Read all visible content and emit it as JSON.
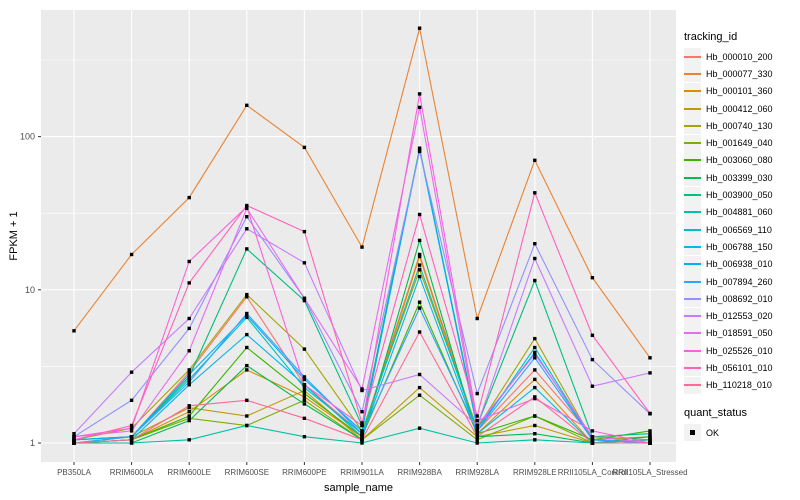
{
  "chart_data": {
    "type": "line",
    "title": "",
    "xlabel": "sample_name",
    "ylabel": "FPKM + 1",
    "y_scale": "log10",
    "y_ticks": [
      1,
      10,
      100
    ],
    "y_tick_labels": [
      "1",
      "10",
      "100"
    ],
    "y_minor_ticks": [
      3.162,
      31.62,
      316.2
    ],
    "ylim": [
      0.93,
      560
    ],
    "grid": true,
    "legend_position": "right",
    "point_shape": "filled-square",
    "point_color": "#000000",
    "x_categories": [
      "PB350LA",
      "RRIM600LA",
      "RRIM600LE",
      "RRIM600SE",
      "RRIM600PE",
      "RRIM901LA",
      "RRIM928BA",
      "RRIM928LA",
      "RRIM928LE",
      "RRII105LA_Control",
      "RRII105LA_Stressed"
    ],
    "series": [
      {
        "name": "Hb_000010_200",
        "color": "#F8766D",
        "values": [
          1.05,
          1.1,
          2.9,
          9.0,
          2.4,
          1.15,
          17,
          1.2,
          3.0,
          1.1,
          1.05
        ]
      },
      {
        "name": "Hb_000077_330",
        "color": "#EA8331",
        "values": [
          5.4,
          17,
          40,
          160,
          85,
          19,
          510,
          6.5,
          70,
          12,
          3.6
        ]
      },
      {
        "name": "Hb_000101_360",
        "color": "#D89000",
        "values": [
          1.0,
          1.05,
          1.6,
          3.0,
          2.0,
          1.1,
          16.5,
          1.15,
          2.6,
          1.0,
          1.0
        ]
      },
      {
        "name": "Hb_000412_060",
        "color": "#C09B00",
        "values": [
          1.0,
          1.1,
          1.7,
          1.5,
          2.2,
          1.05,
          2.3,
          1.1,
          1.3,
          1.0,
          1.0
        ]
      },
      {
        "name": "Hb_000740_130",
        "color": "#A3A500",
        "values": [
          1.05,
          1.25,
          3.0,
          9.3,
          4.1,
          1.2,
          13.5,
          1.25,
          4.8,
          1.05,
          1.1
        ]
      },
      {
        "name": "Hb_001649_040",
        "color": "#7CAE00",
        "values": [
          1.0,
          1.05,
          1.45,
          1.3,
          1.9,
          1.05,
          2.05,
          1.05,
          1.5,
          1.0,
          1.05
        ]
      },
      {
        "name": "Hb_003060_080",
        "color": "#39B600",
        "values": [
          1.0,
          1.05,
          1.5,
          4.2,
          2.1,
          1.1,
          8.3,
          1.15,
          1.5,
          1.05,
          1.2
        ]
      },
      {
        "name": "Hb_003399_030",
        "color": "#00BB4E",
        "values": [
          1.0,
          1.0,
          1.4,
          3.2,
          1.8,
          1.05,
          21,
          1.1,
          1.15,
          1.0,
          1.1
        ]
      },
      {
        "name": "Hb_003900_050",
        "color": "#00BF7D",
        "values": [
          1.05,
          1.1,
          2.7,
          18.5,
          8.5,
          1.3,
          84,
          1.3,
          11.5,
          1.1,
          1.15
        ]
      },
      {
        "name": "Hb_004881_060",
        "color": "#00C1A3",
        "values": [
          1.0,
          1.0,
          1.05,
          1.3,
          1.1,
          1.0,
          1.25,
          1.0,
          1.05,
          1.0,
          1.05
        ]
      },
      {
        "name": "Hb_006569_110",
        "color": "#00BFC4",
        "values": [
          1.0,
          1.1,
          2.6,
          6.6,
          2.3,
          1.15,
          14.5,
          1.2,
          4.2,
          1.05,
          1.0
        ]
      },
      {
        "name": "Hb_006788_150",
        "color": "#00BAE0",
        "values": [
          1.0,
          1.05,
          2.4,
          5.1,
          2.4,
          1.1,
          12.2,
          1.15,
          2.3,
          1.0,
          1.0
        ]
      },
      {
        "name": "Hb_006938_010",
        "color": "#00B0F6",
        "values": [
          1.05,
          1.1,
          2.8,
          6.8,
          2.6,
          1.2,
          82,
          1.25,
          3.9,
          1.05,
          1.0
        ]
      },
      {
        "name": "Hb_007894_260",
        "color": "#35A2FF",
        "values": [
          1.0,
          1.1,
          2.5,
          7.0,
          2.7,
          1.15,
          7.6,
          1.2,
          3.6,
          1.05,
          1.0
        ]
      },
      {
        "name": "Hb_008692_010",
        "color": "#9590FF",
        "values": [
          1.1,
          1.9,
          5.6,
          30,
          8.8,
          1.6,
          80,
          2.1,
          20,
          3.5,
          1.55
        ]
      },
      {
        "name": "Hb_012553_020",
        "color": "#C77CFF",
        "values": [
          1.15,
          2.9,
          6.5,
          25,
          15,
          2.2,
          2.8,
          1.3,
          16,
          2.35,
          2.87
        ]
      },
      {
        "name": "Hb_018591_050",
        "color": "#E76BF3",
        "values": [
          1.1,
          1.2,
          4.0,
          34,
          8.8,
          2.25,
          155,
          1.3,
          3.8,
          1.1,
          1.0
        ]
      },
      {
        "name": "Hb_025526_010",
        "color": "#FA62DB",
        "values": [
          1.1,
          1.25,
          15.3,
          34.8,
          2.4,
          1.3,
          190,
          1.4,
          1.95,
          1.2,
          1.0
        ]
      },
      {
        "name": "Hb_056101_010",
        "color": "#FF62BC",
        "values": [
          1.05,
          1.3,
          11.1,
          35.5,
          24,
          1.35,
          31,
          1.5,
          43,
          5.05,
          1.56
        ]
      },
      {
        "name": "Hb_110218_010",
        "color": "#FF6A98",
        "values": [
          1.0,
          1.05,
          1.75,
          1.9,
          1.45,
          1.05,
          5.3,
          1.1,
          2.0,
          1.0,
          1.0
        ]
      }
    ]
  },
  "legend": {
    "series_title": "tracking_id",
    "status_title": "quant_status",
    "status_items": [
      {
        "label": "OK",
        "marker": "black-square"
      }
    ]
  },
  "style": {
    "panel_bg": "#EBEBEB",
    "grid_color": "#FFFFFF",
    "legend_key_bg": "#F2F2F2",
    "tick_mark_color": "#333333",
    "tick_label_color": "#4D4D4D"
  }
}
